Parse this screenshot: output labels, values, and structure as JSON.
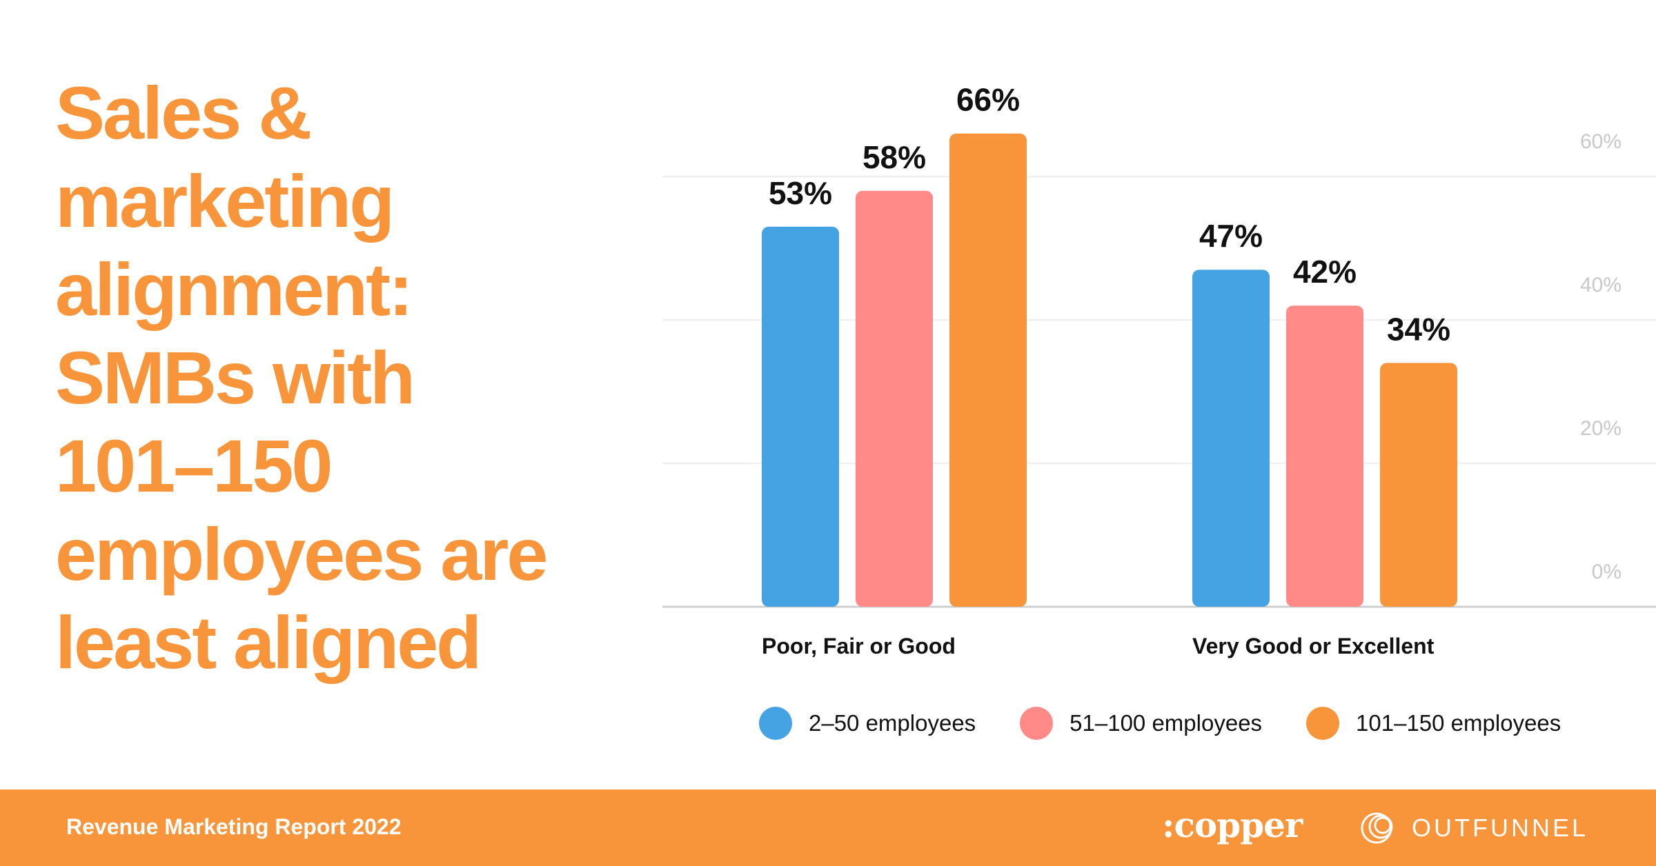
{
  "headline": {
    "lines": [
      "Sales &",
      "marketing",
      "alignment:",
      "SMBs with",
      "101–150",
      "employees are",
      "least aligned"
    ]
  },
  "colors": {
    "accent": "#F8953A",
    "series_blue": "#45A2E3",
    "series_pink": "#FF8A87",
    "series_orange": "#F8953A",
    "grid": "#eeeeee",
    "tick": "#c8c8c8"
  },
  "chart_data": {
    "type": "bar",
    "title": "Sales & marketing alignment: SMBs with 101–150 employees are least aligned",
    "categories": [
      "Poor, Fair or Good",
      "Very Good or Excellent"
    ],
    "series": [
      {
        "name": "2–50 employees",
        "values": [
          53,
          47
        ],
        "labels": [
          "53%",
          "47%"
        ]
      },
      {
        "name": "51–100 employees",
        "values": [
          58,
          42
        ],
        "labels": [
          "58%",
          "42%"
        ]
      },
      {
        "name": "101–150 employees",
        "values": [
          66,
          34
        ],
        "labels": [
          "66%",
          "34%"
        ]
      }
    ],
    "yticks": [
      0,
      20,
      40,
      60
    ],
    "ytick_labels": [
      "0%",
      "20%",
      "40%",
      "60%"
    ],
    "ylim": [
      0,
      60
    ],
    "grid": true,
    "legend_position": "bottom",
    "xlabel": "",
    "ylabel": ""
  },
  "legend": {
    "items": [
      {
        "label": "2–50 employees",
        "icon": "circle-dot-icon"
      },
      {
        "label": "51–100 employees",
        "icon": "circle-dot-icon"
      },
      {
        "label": "101–150 employees",
        "icon": "circle-dot-icon"
      }
    ]
  },
  "footer": {
    "report_title": "Revenue Marketing Report 2022",
    "logo_copper": ":copper",
    "logo_outfunnel": "OUTFUNNEL"
  }
}
